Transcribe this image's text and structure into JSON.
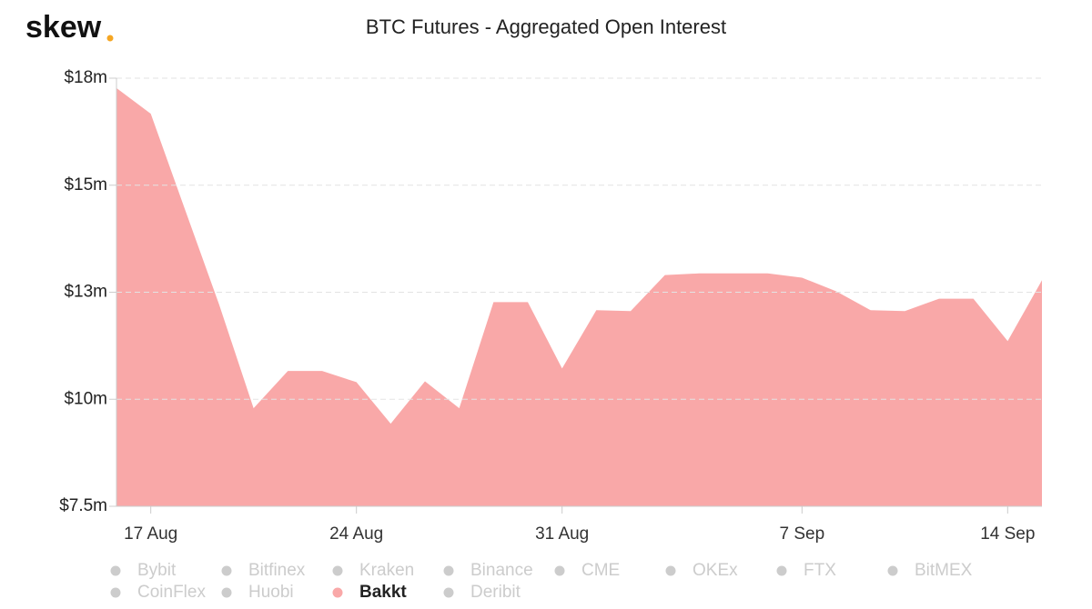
{
  "logo": "skew",
  "chart_data": {
    "type": "area",
    "title": "BTC Futures - Aggregated Open Interest",
    "categories": [
      null,
      "17 Aug",
      null,
      null,
      null,
      null,
      null,
      "24 Aug",
      null,
      null,
      null,
      null,
      null,
      "31 Aug",
      null,
      null,
      null,
      null,
      null,
      null,
      "7 Sep",
      null,
      null,
      null,
      null,
      null,
      "14 Sep",
      null
    ],
    "series": [
      {
        "name": "Bybit",
        "visible": false
      },
      {
        "name": "Bitfinex",
        "visible": false
      },
      {
        "name": "Kraken",
        "visible": false
      },
      {
        "name": "Binance",
        "visible": false
      },
      {
        "name": "CME",
        "visible": false
      },
      {
        "name": "OKEx",
        "visible": false
      },
      {
        "name": "FTX",
        "visible": false
      },
      {
        "name": "BitMEX",
        "visible": false
      },
      {
        "name": "CoinFlex",
        "visible": false
      },
      {
        "name": "Huobi",
        "visible": false
      },
      {
        "name": "Bakkt",
        "visible": true,
        "color": "#f9a8a8",
        "values": [
          17.27,
          16.67,
          14.43,
          12.2,
          9.79,
          10.66,
          10.66,
          10.4,
          9.43,
          10.42,
          9.79,
          12.27,
          12.27,
          10.72,
          12.08,
          12.06,
          12.9,
          12.94,
          12.94,
          12.94,
          12.84,
          12.52,
          12.08,
          12.06,
          12.35,
          12.35,
          11.36,
          12.78
        ]
      },
      {
        "name": "Deribit",
        "visible": false
      }
    ],
    "ylim": [
      7.5,
      17.5
    ],
    "yticks": [
      {
        "value": 7.5,
        "label": "$7.5m"
      },
      {
        "value": 10,
        "label": "$10m"
      },
      {
        "value": 12.5,
        "label": "$13m"
      },
      {
        "value": 15,
        "label": "$15m"
      },
      {
        "value": 17.5,
        "label": "$18m"
      }
    ],
    "grid": true
  }
}
